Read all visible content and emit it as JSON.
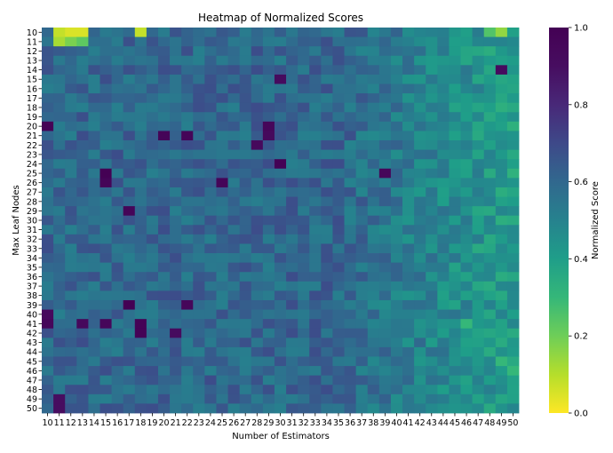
{
  "chart_data": {
    "type": "heatmap",
    "title": "Heatmap of Normalized Scores",
    "xlabel": "Number of Estimators",
    "ylabel": "Max Leaf Nodes",
    "x": [
      10,
      11,
      12,
      13,
      14,
      15,
      16,
      17,
      18,
      19,
      20,
      21,
      22,
      23,
      24,
      25,
      26,
      27,
      28,
      29,
      30,
      31,
      32,
      33,
      34,
      35,
      36,
      37,
      38,
      39,
      40,
      41,
      42,
      43,
      44,
      45,
      46,
      47,
      48,
      49,
      50
    ],
    "y": [
      10,
      11,
      12,
      13,
      14,
      15,
      16,
      17,
      18,
      19,
      20,
      21,
      22,
      23,
      24,
      25,
      26,
      27,
      28,
      29,
      30,
      31,
      32,
      33,
      34,
      35,
      36,
      37,
      38,
      39,
      40,
      41,
      42,
      43,
      44,
      45,
      46,
      47,
      48,
      49,
      50
    ],
    "colorbar": {
      "label": "Normalized Score",
      "colormap": "viridis_r",
      "range": [
        0.0,
        1.0
      ],
      "ticks": [
        0.0,
        0.2,
        0.4,
        0.6,
        0.8,
        1.0
      ],
      "tick_labels": [
        "0.0",
        "0.2",
        "0.4",
        "0.6",
        "0.8",
        "1.0"
      ]
    },
    "pattern": {
      "baseline": 0.6,
      "column_trend": "values decrease toward higher estimators (columns 41-50 near 0.4-0.5)",
      "low_region": "rows 10-11 at estimators 11-13 near 0.05-0.15"
    },
    "highlights": [
      {
        "x": 10,
        "y": 20,
        "value": 0.98
      },
      {
        "x": 20,
        "y": 21,
        "value": 0.97
      },
      {
        "x": 22,
        "y": 21,
        "value": 0.97
      },
      {
        "x": 29,
        "y": 20,
        "value": 0.95
      },
      {
        "x": 29,
        "y": 21,
        "value": 0.93
      },
      {
        "x": 28,
        "y": 22,
        "value": 0.93
      },
      {
        "x": 30,
        "y": 24,
        "value": 0.99
      },
      {
        "x": 15,
        "y": 25,
        "value": 1.0
      },
      {
        "x": 15,
        "y": 26,
        "value": 0.97
      },
      {
        "x": 25,
        "y": 26,
        "value": 0.97
      },
      {
        "x": 39,
        "y": 25,
        "value": 0.95
      },
      {
        "x": 17,
        "y": 29,
        "value": 0.97
      },
      {
        "x": 17,
        "y": 39,
        "value": 1.0
      },
      {
        "x": 22,
        "y": 39,
        "value": 0.95
      },
      {
        "x": 18,
        "y": 41,
        "value": 0.98
      },
      {
        "x": 18,
        "y": 42,
        "value": 0.98
      },
      {
        "x": 10,
        "y": 40,
        "value": 0.93
      },
      {
        "x": 10,
        "y": 41,
        "value": 0.95
      },
      {
        "x": 13,
        "y": 41,
        "value": 0.93
      },
      {
        "x": 15,
        "y": 41,
        "value": 0.95
      },
      {
        "x": 30,
        "y": 15,
        "value": 0.92
      },
      {
        "x": 49,
        "y": 14,
        "value": 0.92
      },
      {
        "x": 21,
        "y": 42,
        "value": 0.92
      },
      {
        "x": 11,
        "y": 49,
        "value": 0.9
      },
      {
        "x": 11,
        "y": 50,
        "value": 0.9
      },
      {
        "x": 11,
        "y": 10,
        "value": 0.08
      },
      {
        "x": 12,
        "y": 10,
        "value": 0.05
      },
      {
        "x": 13,
        "y": 10,
        "value": 0.05
      },
      {
        "x": 11,
        "y": 11,
        "value": 0.12
      },
      {
        "x": 18,
        "y": 10,
        "value": 0.08
      },
      {
        "x": 49,
        "y": 10,
        "value": 0.15
      },
      {
        "x": 48,
        "y": 10,
        "value": 0.25
      },
      {
        "x": 46,
        "y": 41,
        "value": 0.3
      },
      {
        "x": 49,
        "y": 45,
        "value": 0.3
      },
      {
        "x": 50,
        "y": 46,
        "value": 0.3
      }
    ]
  }
}
